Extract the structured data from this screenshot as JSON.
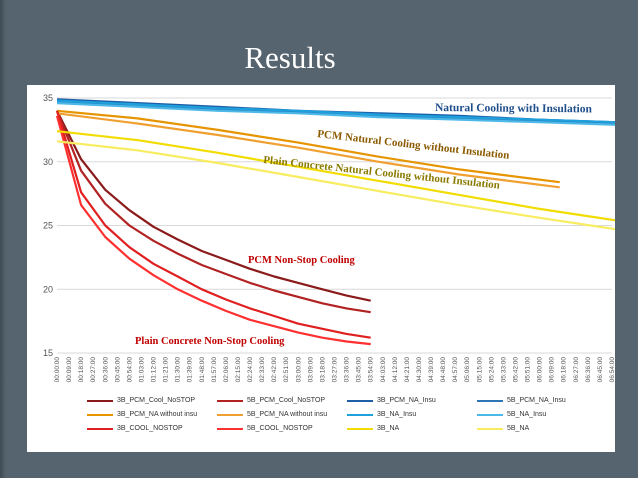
{
  "slide": {
    "title": "Results"
  },
  "chart_data": {
    "type": "line",
    "title": "",
    "xlabel": "",
    "ylabel": "",
    "ylim": [
      15,
      35
    ],
    "yticks": [
      15,
      20,
      25,
      30,
      35
    ],
    "grid": true,
    "legend_position": "bottom",
    "x_ticks": [
      "00:00:00",
      "00:09:00",
      "00:18:00",
      "00:27:00",
      "00:36:00",
      "00:45:00",
      "00:54:00",
      "01:03:00",
      "01:12:00",
      "01:21:00",
      "01:30:00",
      "01:39:00",
      "01:48:00",
      "01:57:00",
      "02:06:00",
      "02:15:00",
      "02:24:00",
      "02:33:00",
      "02:42:00",
      "02:51:00",
      "03:00:00",
      "03:09:00",
      "03:18:00",
      "03:27:00",
      "03:36:00",
      "03:45:00",
      "03:54:00",
      "04:03:00",
      "04:12:00",
      "04:21:00",
      "04:30:00",
      "04:39:00",
      "04:48:00",
      "04:57:00",
      "05:06:00",
      "05:15:00",
      "05:24:00",
      "05:33:00",
      "05:42:00",
      "05:51:00",
      "06:00:00",
      "06:09:00",
      "06:18:00",
      "06:27:00",
      "06:36:00",
      "06:45:00",
      "06:54:00"
    ],
    "annotations": [
      {
        "text": "Natural Cooling with Insulation",
        "color": "#1f4e8c"
      },
      {
        "text": "PCM Natural Cooling without Insulation",
        "color": "#8b5a00"
      },
      {
        "text": "Plain Concrete Natural Cooling without Insulation",
        "color": "#8b7a00"
      },
      {
        "text": "PCM Non-Stop Cooling",
        "color": "#c00000"
      },
      {
        "text": "Plain Concrete Non-Stop Cooling",
        "color": "#c00000"
      }
    ],
    "series": [
      {
        "name": "3B_PCM_Cool_NoSTOP",
        "color": "#8b1a1a",
        "x": [
          "00:00:00",
          "00:18:00",
          "00:36:00",
          "00:54:00",
          "01:12:00",
          "01:30:00",
          "01:48:00",
          "02:06:00",
          "02:24:00",
          "02:42:00",
          "03:00:00",
          "03:18:00",
          "03:36:00",
          "03:54:00"
        ],
        "values": [
          34.0,
          30.2,
          27.8,
          26.2,
          24.9,
          23.9,
          23.0,
          22.3,
          21.6,
          21.0,
          20.5,
          20.0,
          19.5,
          19.1
        ]
      },
      {
        "name": "5B_PCM_Cool_NoSTOP",
        "color": "#b22222",
        "x": [
          "00:00:00",
          "00:18:00",
          "00:36:00",
          "00:54:00",
          "01:12:00",
          "01:30:00",
          "01:48:00",
          "02:06:00",
          "02:24:00",
          "02:42:00",
          "03:00:00",
          "03:18:00",
          "03:36:00",
          "03:54:00"
        ],
        "values": [
          34.0,
          29.3,
          26.7,
          25.0,
          23.8,
          22.8,
          21.9,
          21.2,
          20.5,
          19.9,
          19.4,
          18.9,
          18.5,
          18.2
        ]
      },
      {
        "name": "3B_PCM_NA_Insu",
        "color": "#1f5fa8",
        "x": [
          "00:00:00",
          "01:00:00",
          "02:00:00",
          "03:00:00",
          "04:00:00",
          "05:00:00",
          "06:00:00",
          "06:57:00"
        ],
        "values": [
          34.9,
          34.6,
          34.3,
          34.0,
          33.8,
          33.6,
          33.3,
          33.1
        ]
      },
      {
        "name": "5B_PCM_NA_Insu",
        "color": "#2e75b6",
        "x": [
          "00:00:00",
          "01:00:00",
          "02:00:00",
          "03:00:00",
          "04:00:00",
          "05:00:00",
          "06:00:00",
          "06:57:00"
        ],
        "values": [
          34.7,
          34.4,
          34.1,
          33.9,
          33.6,
          33.4,
          33.2,
          33.0
        ]
      },
      {
        "name": "3B_PCM_NA without insu",
        "color": "#e69500",
        "x": [
          "00:00:00",
          "01:00:00",
          "02:00:00",
          "03:00:00",
          "04:00:00",
          "05:00:00",
          "06:15:00"
        ],
        "values": [
          34.0,
          33.4,
          32.5,
          31.5,
          30.4,
          29.4,
          28.4
        ]
      },
      {
        "name": "5B_PCM_NA without insu",
        "color": "#f0a030",
        "x": [
          "00:00:00",
          "01:00:00",
          "02:00:00",
          "03:00:00",
          "04:00:00",
          "05:00:00",
          "06:15:00"
        ],
        "values": [
          33.8,
          33.0,
          32.1,
          31.1,
          30.0,
          29.0,
          28.0
        ]
      },
      {
        "name": "3B_NA_Insu",
        "color": "#1ea0dc",
        "x": [
          "00:00:00",
          "01:00:00",
          "02:00:00",
          "03:00:00",
          "04:00:00",
          "05:00:00",
          "06:00:00",
          "06:57:00"
        ],
        "values": [
          34.8,
          34.5,
          34.2,
          34.0,
          33.7,
          33.5,
          33.3,
          33.1
        ]
      },
      {
        "name": "5B_NA_Insu",
        "color": "#4cb8e8",
        "x": [
          "00:00:00",
          "01:00:00",
          "02:00:00",
          "03:00:00",
          "04:00:00",
          "05:00:00",
          "06:00:00",
          "06:57:00"
        ],
        "values": [
          34.6,
          34.3,
          34.0,
          33.8,
          33.5,
          33.3,
          33.1,
          32.9
        ]
      },
      {
        "name": "3B_COOL_NOSTOP",
        "color": "#e02020",
        "x": [
          "00:00:00",
          "00:18:00",
          "00:36:00",
          "00:54:00",
          "01:12:00",
          "01:30:00",
          "01:48:00",
          "02:06:00",
          "02:24:00",
          "02:42:00",
          "03:00:00",
          "03:18:00",
          "03:36:00",
          "03:54:00"
        ],
        "values": [
          34.0,
          27.6,
          25.0,
          23.3,
          22.0,
          21.0,
          20.0,
          19.2,
          18.5,
          17.9,
          17.3,
          16.9,
          16.5,
          16.2
        ]
      },
      {
        "name": "5B_COOL_NOSTOP",
        "color": "#ff3030",
        "x": [
          "00:00:00",
          "00:18:00",
          "00:36:00",
          "00:54:00",
          "01:12:00",
          "01:30:00",
          "01:48:00",
          "02:06:00",
          "02:24:00",
          "02:42:00",
          "03:00:00",
          "03:18:00",
          "03:36:00",
          "03:54:00"
        ],
        "values": [
          33.6,
          26.6,
          24.1,
          22.4,
          21.1,
          20.0,
          19.1,
          18.3,
          17.6,
          17.1,
          16.6,
          16.2,
          15.9,
          15.7
        ]
      },
      {
        "name": "3B_NA",
        "color": "#f2dc00",
        "x": [
          "00:00:00",
          "01:00:00",
          "02:00:00",
          "03:00:00",
          "04:00:00",
          "05:00:00",
          "06:00:00",
          "06:57:00"
        ],
        "values": [
          32.4,
          31.7,
          30.7,
          29.6,
          28.5,
          27.4,
          26.3,
          25.4
        ]
      },
      {
        "name": "5B_NA",
        "color": "#f8ec60",
        "x": [
          "00:00:00",
          "01:00:00",
          "02:00:00",
          "03:00:00",
          "04:00:00",
          "05:00:00",
          "06:00:00",
          "06:57:00"
        ],
        "values": [
          31.6,
          30.9,
          29.9,
          28.8,
          27.7,
          26.6,
          25.6,
          24.7
        ]
      }
    ]
  }
}
